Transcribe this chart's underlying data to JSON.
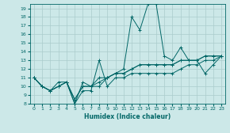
{
  "xlabel": "Humidex (Indice chaleur)",
  "background_color": "#cce8e8",
  "grid_color": "#aacccc",
  "line_color": "#006666",
  "xlim": [
    -0.5,
    23.5
  ],
  "ylim": [
    8,
    19.5
  ],
  "xticks": [
    0,
    1,
    2,
    3,
    4,
    5,
    6,
    7,
    8,
    9,
    10,
    11,
    12,
    13,
    14,
    15,
    16,
    17,
    18,
    19,
    20,
    21,
    22,
    23
  ],
  "yticks": [
    8,
    9,
    10,
    11,
    12,
    13,
    14,
    15,
    16,
    17,
    18,
    19
  ],
  "lines": [
    {
      "x": [
        0,
        1,
        2,
        3,
        4,
        5,
        6,
        7,
        8,
        9,
        10,
        11,
        12,
        13,
        14,
        15,
        16,
        17,
        18,
        19,
        20,
        21,
        22,
        23
      ],
      "y": [
        11,
        10,
        9.5,
        10,
        10.5,
        8,
        9.5,
        9.5,
        13,
        10,
        11,
        11,
        11.5,
        11.5,
        11.5,
        11.5,
        11.5,
        11.5,
        12,
        12.5,
        12.5,
        13,
        13,
        13.5
      ]
    },
    {
      "x": [
        0,
        1,
        2,
        3,
        4,
        5,
        6,
        7,
        8,
        9,
        10,
        11,
        12,
        13,
        14,
        15,
        16,
        17,
        18,
        19,
        20,
        21,
        22,
        23
      ],
      "y": [
        11,
        10,
        9.5,
        10,
        10.5,
        8,
        10.5,
        10,
        10,
        11,
        11.5,
        12,
        18,
        16.5,
        19.5,
        19.5,
        13.5,
        13,
        14.5,
        13,
        13,
        11.5,
        12.5,
        13.5
      ]
    },
    {
      "x": [
        0,
        1,
        2,
        3,
        4,
        5,
        6,
        7,
        8,
        9,
        10,
        11,
        12,
        13,
        14,
        15,
        16,
        17,
        18,
        19,
        20,
        21,
        22,
        23
      ],
      "y": [
        11,
        10,
        9.5,
        10.5,
        10.5,
        8.5,
        10,
        10,
        11,
        11,
        11.5,
        11.5,
        12,
        12.5,
        12.5,
        12.5,
        12.5,
        12.5,
        13,
        13,
        13,
        13.5,
        13.5,
        13.5
      ]
    },
    {
      "x": [
        0,
        1,
        2,
        3,
        4,
        5,
        6,
        7,
        8,
        9,
        10,
        11,
        12,
        13,
        14,
        15,
        16,
        17,
        18,
        19,
        20,
        21,
        22,
        23
      ],
      "y": [
        11,
        10,
        9.5,
        10,
        10.5,
        8.5,
        10,
        10,
        10.5,
        11,
        11.5,
        11.5,
        12,
        12.5,
        12.5,
        12.5,
        12.5,
        12.5,
        13,
        13,
        13,
        13.5,
        13.5,
        13.5
      ]
    }
  ]
}
